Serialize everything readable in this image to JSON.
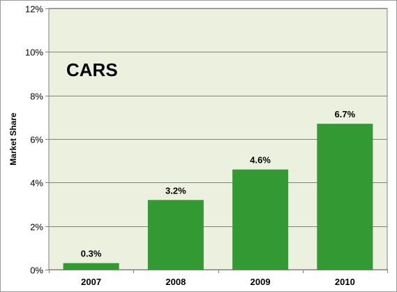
{
  "chart_data": {
    "type": "bar",
    "title": "CARS",
    "xlabel": "",
    "ylabel": "Market Share",
    "categories": [
      "2007",
      "2008",
      "2009",
      "2010"
    ],
    "values": [
      0.3,
      3.2,
      4.6,
      6.7
    ],
    "data_labels": [
      "0.3%",
      "3.2%",
      "4.6%",
      "6.7%"
    ],
    "ylim": [
      0,
      12
    ],
    "yticks": [
      0,
      2,
      4,
      6,
      8,
      10,
      12
    ],
    "ytick_labels": [
      "0%",
      "2%",
      "4%",
      "6%",
      "8%",
      "10%",
      "12%"
    ],
    "grid": true,
    "legend": "none",
    "colors": {
      "bar": "#339933",
      "plot_background": "#ebf1de",
      "gridline": "#808080",
      "text": "#000000"
    }
  }
}
